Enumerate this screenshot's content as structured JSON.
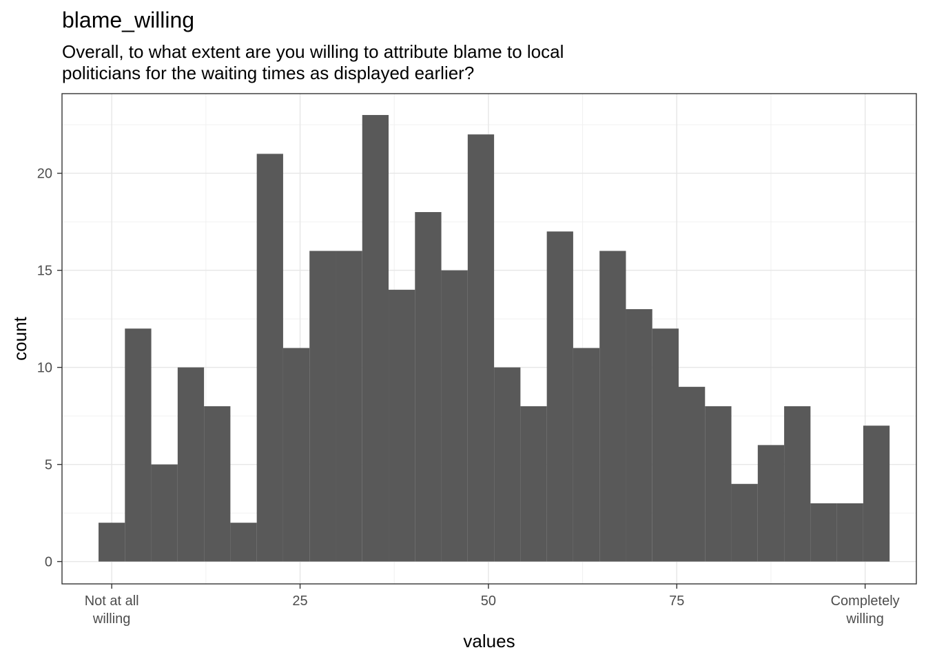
{
  "title": "blame_willing",
  "subtitle": "Overall, to what extent are you willing to attribute blame to local\npoliticians for the waiting times as displayed earlier?",
  "chart_data": {
    "type": "bar",
    "histogram": true,
    "xlabel": "values",
    "ylabel": "count",
    "xlim": [
      -6.6,
      106.8
    ],
    "ylim": [
      -1.15,
      24.1
    ],
    "grid": true,
    "bar_color": "#595959",
    "bins": [
      {
        "x0": -1.75,
        "x1": 1.75,
        "count": 2
      },
      {
        "x0": 1.75,
        "x1": 5.25,
        "count": 12
      },
      {
        "x0": 5.25,
        "x1": 8.75,
        "count": 5
      },
      {
        "x0": 8.75,
        "x1": 12.25,
        "count": 10
      },
      {
        "x0": 12.25,
        "x1": 15.75,
        "count": 8
      },
      {
        "x0": 15.75,
        "x1": 19.25,
        "count": 2
      },
      {
        "x0": 19.25,
        "x1": 22.75,
        "count": 21
      },
      {
        "x0": 22.75,
        "x1": 26.25,
        "count": 11
      },
      {
        "x0": 26.25,
        "x1": 29.75,
        "count": 16
      },
      {
        "x0": 29.75,
        "x1": 33.25,
        "count": 16
      },
      {
        "x0": 33.25,
        "x1": 36.75,
        "count": 23
      },
      {
        "x0": 36.75,
        "x1": 40.25,
        "count": 14
      },
      {
        "x0": 40.25,
        "x1": 43.75,
        "count": 18
      },
      {
        "x0": 43.75,
        "x1": 47.25,
        "count": 15
      },
      {
        "x0": 47.25,
        "x1": 50.75,
        "count": 22
      },
      {
        "x0": 50.75,
        "x1": 54.25,
        "count": 10
      },
      {
        "x0": 54.25,
        "x1": 57.75,
        "count": 8
      },
      {
        "x0": 57.75,
        "x1": 61.25,
        "count": 17
      },
      {
        "x0": 61.25,
        "x1": 64.75,
        "count": 11
      },
      {
        "x0": 64.75,
        "x1": 68.25,
        "count": 16
      },
      {
        "x0": 68.25,
        "x1": 71.75,
        "count": 13
      },
      {
        "x0": 71.75,
        "x1": 75.25,
        "count": 12
      },
      {
        "x0": 75.25,
        "x1": 78.75,
        "count": 9
      },
      {
        "x0": 78.75,
        "x1": 82.25,
        "count": 8
      },
      {
        "x0": 82.25,
        "x1": 85.75,
        "count": 4
      },
      {
        "x0": 85.75,
        "x1": 89.25,
        "count": 6
      },
      {
        "x0": 89.25,
        "x1": 92.75,
        "count": 8
      },
      {
        "x0": 92.75,
        "x1": 96.25,
        "count": 3
      },
      {
        "x0": 96.25,
        "x1": 99.75,
        "count": 3
      },
      {
        "x0": 99.75,
        "x1": 103.25,
        "count": 7
      }
    ],
    "x_ticks": [
      {
        "value": 0,
        "label": [
          "Not at all",
          "willing"
        ]
      },
      {
        "value": 25,
        "label": [
          "25"
        ]
      },
      {
        "value": 50,
        "label": [
          "50"
        ]
      },
      {
        "value": 75,
        "label": [
          "75"
        ]
      },
      {
        "value": 100,
        "label": [
          "Completely",
          "willing"
        ]
      }
    ],
    "y_ticks": [
      0,
      5,
      10,
      15,
      20
    ],
    "x_minor_grid": [
      12.5,
      37.5,
      62.5,
      87.5
    ],
    "y_minor_grid": [
      2.5,
      7.5,
      12.5,
      17.5,
      22.5
    ]
  }
}
